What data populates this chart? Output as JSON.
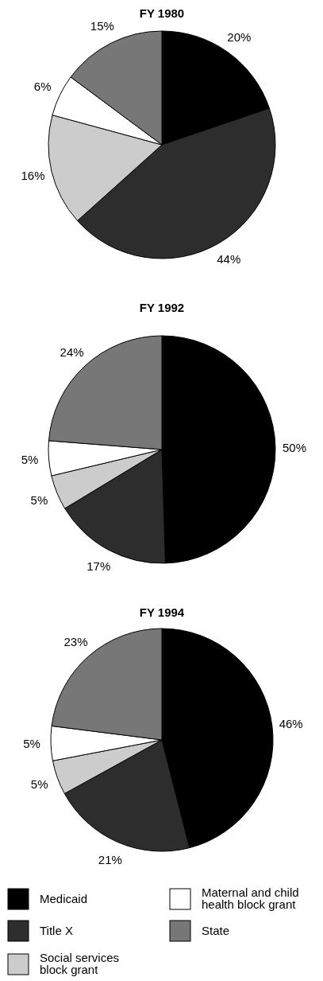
{
  "chart_data": [
    {
      "type": "pie",
      "title": "FY 1980",
      "categories": [
        null,
        null,
        null,
        null,
        null
      ],
      "values": [
        20,
        44,
        16,
        6,
        15
      ],
      "colors": [
        "#000000",
        "#2d2d2d",
        "#cccccc",
        "#ffffff",
        "#777777"
      ],
      "value_labels": [
        "20%",
        "44%",
        "16%",
        "6%",
        "15%"
      ],
      "legend": false
    },
    {
      "type": "pie",
      "title": "FY 1992",
      "categories": [
        null,
        null,
        null,
        null,
        null
      ],
      "values": [
        50,
        17,
        5,
        5,
        24
      ],
      "colors": [
        "#000000",
        "#2d2d2d",
        "#cccccc",
        "#ffffff",
        "#777777"
      ],
      "value_labels": [
        "50%",
        "17%",
        "5%",
        "5%",
        "24%"
      ],
      "legend": false
    },
    {
      "type": "pie",
      "title": "FY 1994",
      "categories": [
        "Medicaid",
        "Title X",
        "Social services block grant",
        "Maternal and child health block grant",
        "State"
      ],
      "values": [
        46,
        21,
        5,
        5,
        23
      ],
      "colors": [
        "#000000",
        "#2d2d2d",
        "#cccccc",
        "#ffffff",
        "#777777"
      ],
      "value_labels": [
        "46%",
        "21%",
        "5%",
        "5%",
        "23%"
      ],
      "legend": "bottom"
    }
  ]
}
